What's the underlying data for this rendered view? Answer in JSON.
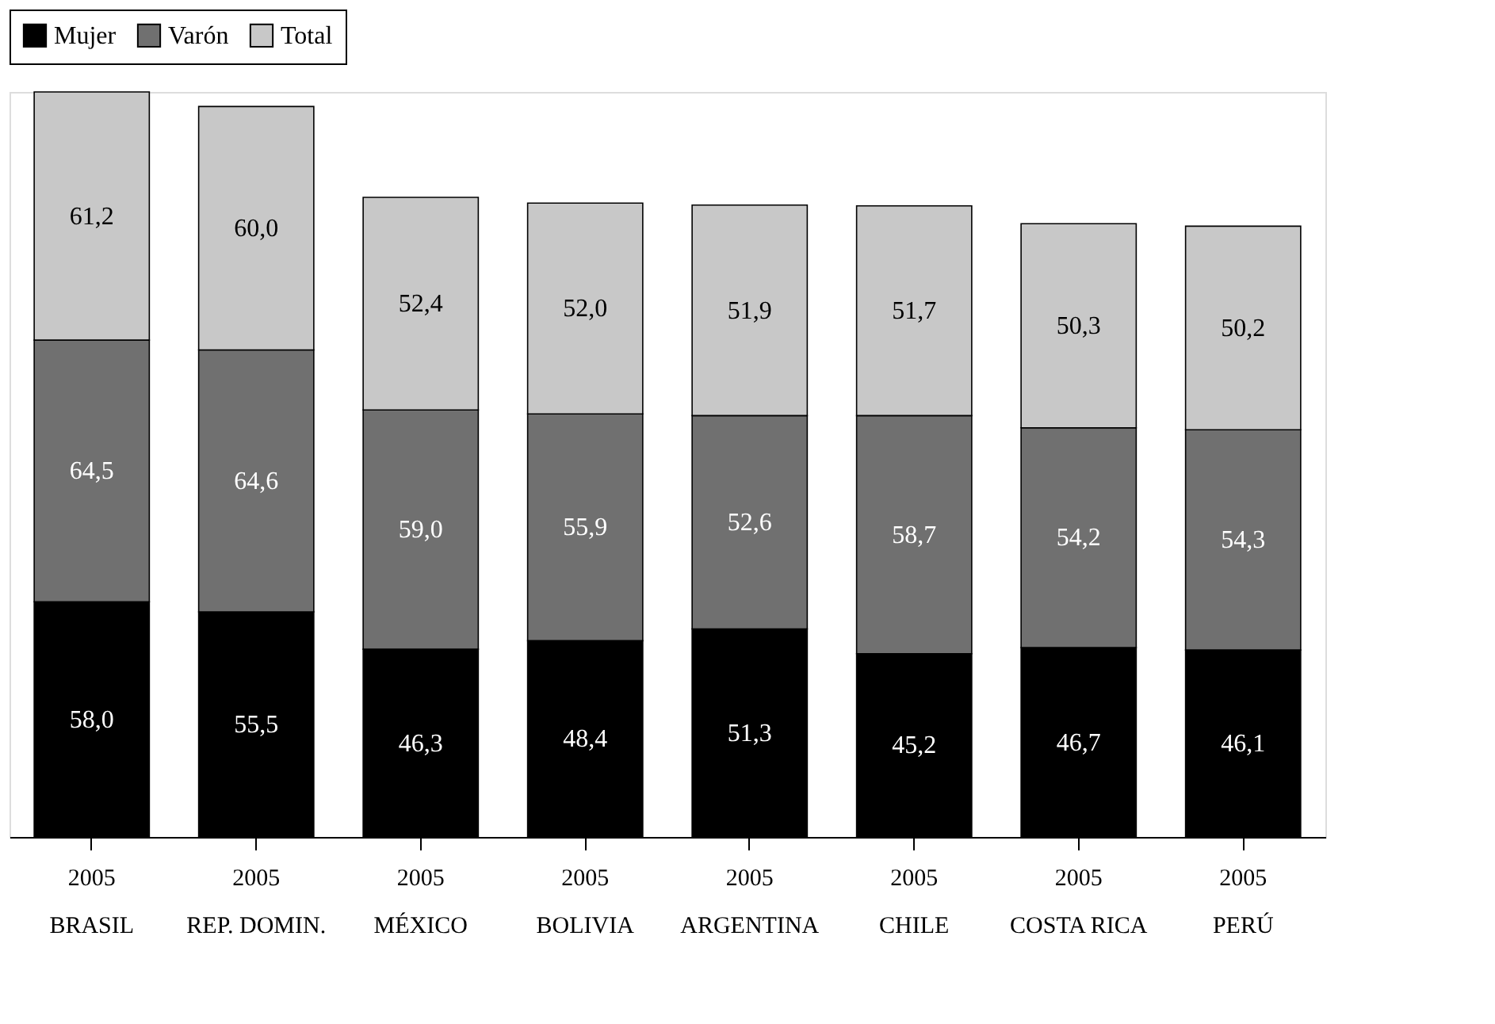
{
  "chart_data": {
    "type": "bar",
    "stacked": true,
    "legend": "top",
    "categories": [
      "BRASIL",
      "REP. DOMIN.",
      "MÉXICO",
      "BOLIVIA",
      "ARGENTINA",
      "CHILE",
      "COSTA RICA",
      "PERÚ"
    ],
    "series": [
      {
        "name": "Mujer",
        "color": "#000000",
        "values": [
          58.0,
          55.5,
          46.3,
          48.4,
          51.3,
          45.2,
          46.7,
          46.1
        ],
        "value_labels": [
          "58,0",
          "55,5",
          "46,3",
          "48,4",
          "51,3",
          "45,2",
          "46,7",
          "46,1"
        ]
      },
      {
        "name": "Varón",
        "color": "#707070",
        "values": [
          64.5,
          64.6,
          59.0,
          55.9,
          52.6,
          58.7,
          54.2,
          54.3
        ],
        "value_labels": [
          "64,5",
          "64,6",
          "59,0",
          "55,9",
          "52,6",
          "58,7",
          "54,2",
          "54,3"
        ]
      },
      {
        "name": "Total",
        "color": "#c8c8c8",
        "values": [
          61.2,
          60.0,
          52.4,
          52.0,
          51.9,
          51.7,
          50.3,
          50.2
        ],
        "value_labels": [
          "61,2",
          "60,0",
          "52,4",
          "52,0",
          "51,9",
          "51,7",
          "50,3",
          "50,2"
        ]
      }
    ],
    "annotations": [
      {
        "text": "2005",
        "x": "BRASIL"
      },
      {
        "text": "2005",
        "x": "REP. DOMIN."
      },
      {
        "text": "2005",
        "x": "MÉXICO"
      },
      {
        "text": "2005",
        "x": "BOLIVIA"
      },
      {
        "text": "2005",
        "x": "ARGENTINA"
      },
      {
        "text": "2005",
        "x": "CHILE"
      },
      {
        "text": "2005",
        "x": "COSTA RICA"
      },
      {
        "text": "2005",
        "x": "PERÚ"
      }
    ]
  }
}
